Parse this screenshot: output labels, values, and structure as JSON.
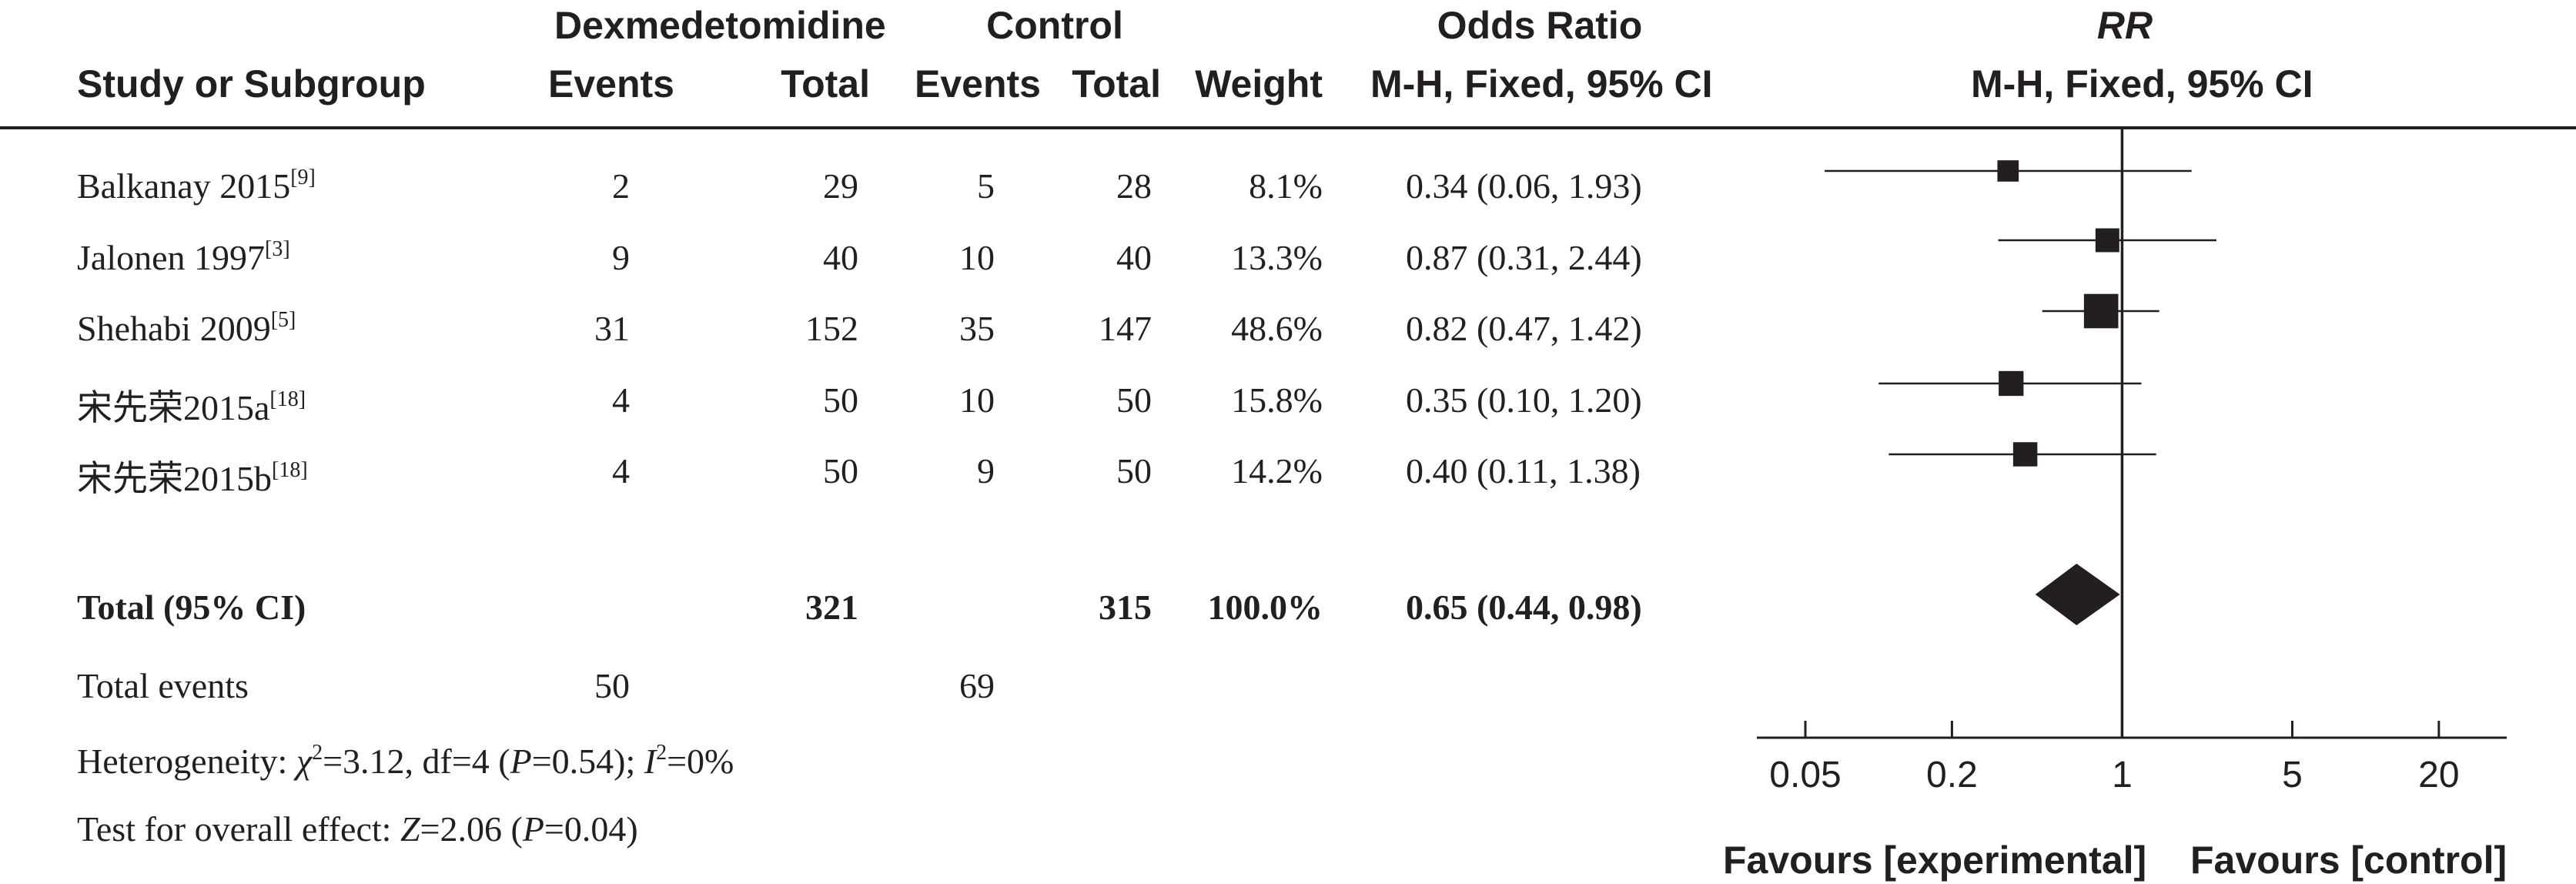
{
  "header": {
    "group_dex": "Dexmedetomidine",
    "group_ctrl": "Control",
    "odds_ratio": "Odds Ratio",
    "rr": "RR",
    "study_col": "Study or Subgroup",
    "events": "Events",
    "total": "Total",
    "weight": "Weight",
    "ci_method": "M-H, Fixed, 95% CI",
    "rr_method": "M-H, Fixed, 95% CI"
  },
  "studies": [
    {
      "name": "Balkanay 2015",
      "ref": "[9]",
      "dex_events": "2",
      "dex_total": "29",
      "ctrl_events": "5",
      "ctrl_total": "28",
      "weight": "8.1%",
      "ci": "0.34 (0.06, 1.93)"
    },
    {
      "name": "Jalonen 1997",
      "ref": "[3]",
      "dex_events": "9",
      "dex_total": "40",
      "ctrl_events": "10",
      "ctrl_total": "40",
      "weight": "13.3%",
      "ci": "0.87 (0.31, 2.44)"
    },
    {
      "name": "Shehabi 2009",
      "ref": "[5]",
      "dex_events": "31",
      "dex_total": "152",
      "ctrl_events": "35",
      "ctrl_total": "147",
      "weight": "48.6%",
      "ci": "0.82 (0.47, 1.42)"
    },
    {
      "name": "宋先荣2015a",
      "ref": "[18]",
      "dex_events": "4",
      "dex_total": "50",
      "ctrl_events": "10",
      "ctrl_total": "50",
      "weight": "15.8%",
      "ci": "0.35 (0.10, 1.20)"
    },
    {
      "name": "宋先荣2015b",
      "ref": "[18]",
      "dex_events": "4",
      "dex_total": "50",
      "ctrl_events": "9",
      "ctrl_total": "50",
      "weight": "14.2%",
      "ci": "0.40 (0.11, 1.38)"
    }
  ],
  "total_row": {
    "label": "Total (95% CI)",
    "dex_total": "321",
    "ctrl_total": "315",
    "weight": "100.0%",
    "ci": "0.65 (0.44, 0.98)"
  },
  "events_row": {
    "label": "Total events",
    "dex_events": "50",
    "ctrl_events": "69"
  },
  "heterogeneity": {
    "prefix": "Heterogeneity: ",
    "chi": "χ",
    "chi_sup": "2",
    "chi_val": "=3.12, df=4 (",
    "p": "P",
    "p_val": "=0.54); ",
    "i": "I",
    "i_sup": "2",
    "i_val": "=0%"
  },
  "overall": {
    "prefix": "Test for overall effect: ",
    "z": "Z",
    "z_val": "=2.06 (",
    "p": "P",
    "p_val": "=0.04)"
  },
  "axis": {
    "ticks": [
      "0.05",
      "0.2",
      "1",
      "5",
      "20"
    ],
    "favours_left": "Favours [experimental]",
    "favours_right": "Favours [control]"
  },
  "chart_data": {
    "type": "forest",
    "scale": "log",
    "xlim": [
      0.0316,
      38
    ],
    "x_ticks": [
      0.05,
      0.2,
      1,
      5,
      20
    ],
    "reference_line": 1,
    "studies": [
      {
        "name": "Balkanay 2015",
        "estimate": 0.34,
        "lower": 0.06,
        "upper": 1.93,
        "weight": 8.1
      },
      {
        "name": "Jalonen 1997",
        "estimate": 0.87,
        "lower": 0.31,
        "upper": 2.44,
        "weight": 13.3
      },
      {
        "name": "Shehabi 2009",
        "estimate": 0.82,
        "lower": 0.47,
        "upper": 1.42,
        "weight": 48.6
      },
      {
        "name": "宋先荣2015a",
        "estimate": 0.35,
        "lower": 0.1,
        "upper": 1.2,
        "weight": 15.8
      },
      {
        "name": "宋先荣2015b",
        "estimate": 0.4,
        "lower": 0.11,
        "upper": 1.38,
        "weight": 14.2
      }
    ],
    "pooled": {
      "estimate": 0.65,
      "lower": 0.44,
      "upper": 0.98
    }
  }
}
